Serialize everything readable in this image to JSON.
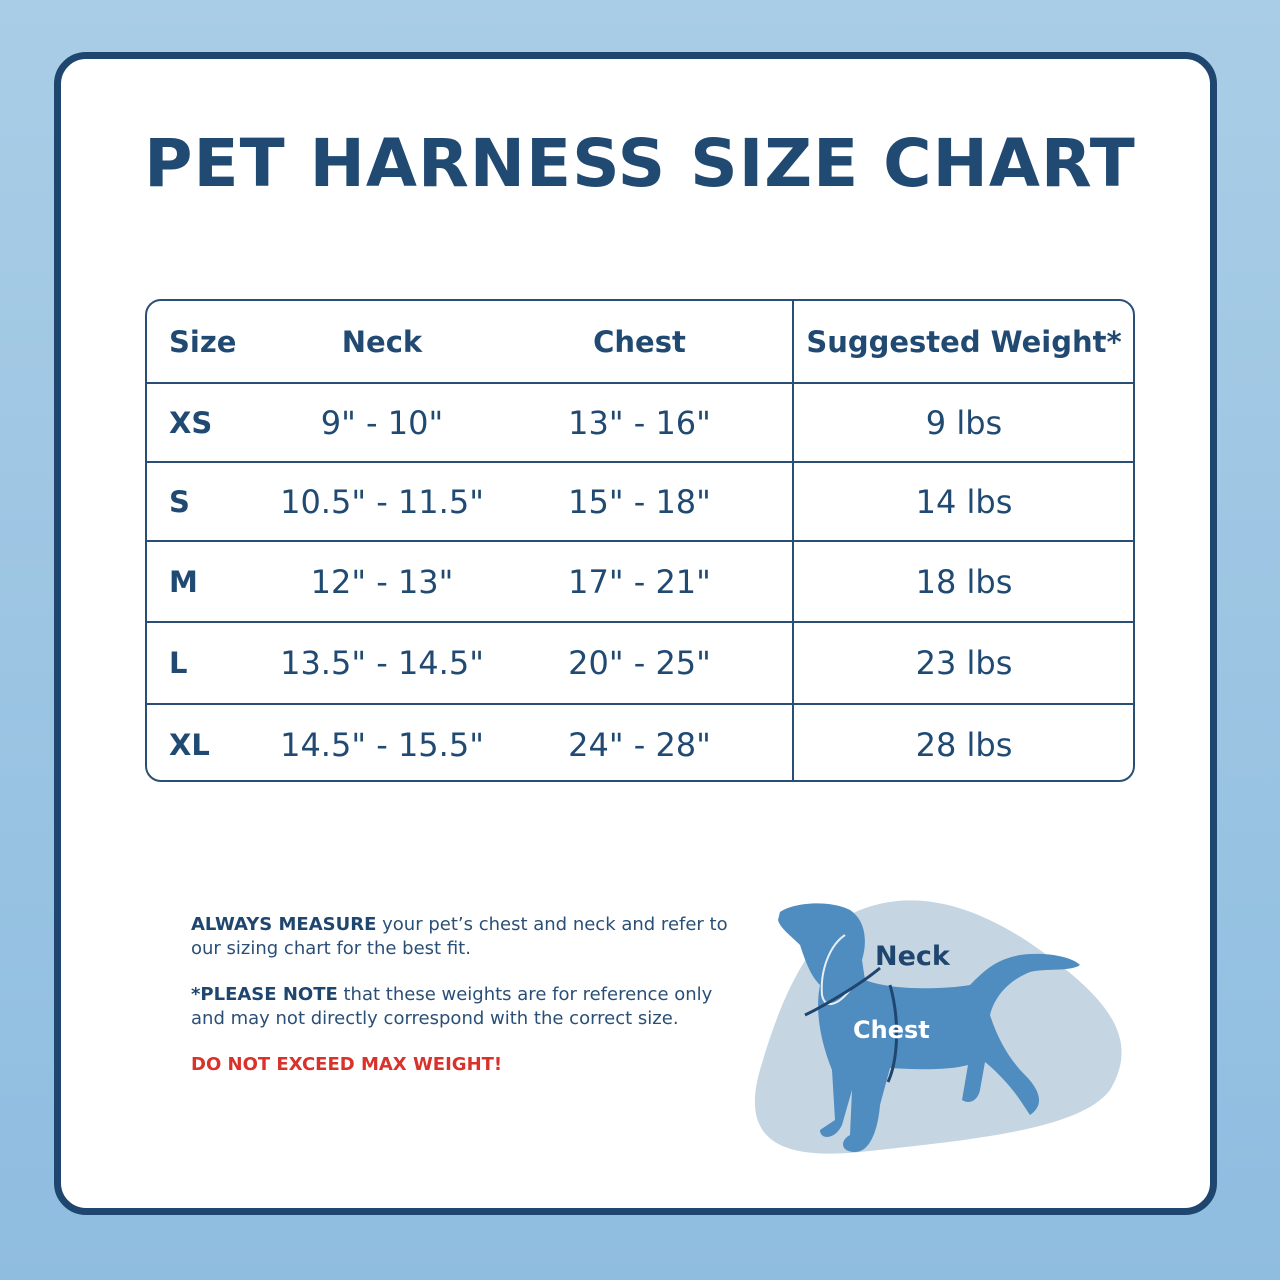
{
  "title": "PET HARNESS SIZE CHART",
  "table": {
    "headers": [
      "Size",
      "Neck",
      "Chest",
      "Suggested Weight*"
    ],
    "rows": [
      {
        "size": "XS",
        "neck": "9\" - 10\"",
        "chest": "13\" - 16\"",
        "weight": "9 lbs"
      },
      {
        "size": "S",
        "neck": "10.5\" - 11.5\"",
        "chest": "15\" - 18\"",
        "weight": "14 lbs"
      },
      {
        "size": "M",
        "neck": "12\" - 13\"",
        "chest": "17\" - 21\"",
        "weight": "18 lbs"
      },
      {
        "size": "L",
        "neck": "13.5\" - 14.5\"",
        "chest": "20\" - 25\"",
        "weight": "23 lbs"
      },
      {
        "size": "XL",
        "neck": "14.5\" - 15.5\"",
        "chest": "24\" - 28\"",
        "weight": "28 lbs"
      }
    ]
  },
  "notes": {
    "measure_bold": "ALWAYS MEASURE",
    "measure_text": " your pet’s chest and neck and refer to our sizing chart for the best fit.",
    "note_bold": "*PLEASE NOTE",
    "note_text": " that these weights are for reference only and may not directly correspond with the correct size.",
    "warning": "DO NOT EXCEED MAX WEIGHT!"
  },
  "diagram": {
    "neck_label": "Neck",
    "chest_label": "Chest",
    "dog_color": "#4f8cc0",
    "blob_color": "#c5d6e2"
  },
  "colors": {
    "navy": "#214a73",
    "warning": "#d8322b"
  }
}
